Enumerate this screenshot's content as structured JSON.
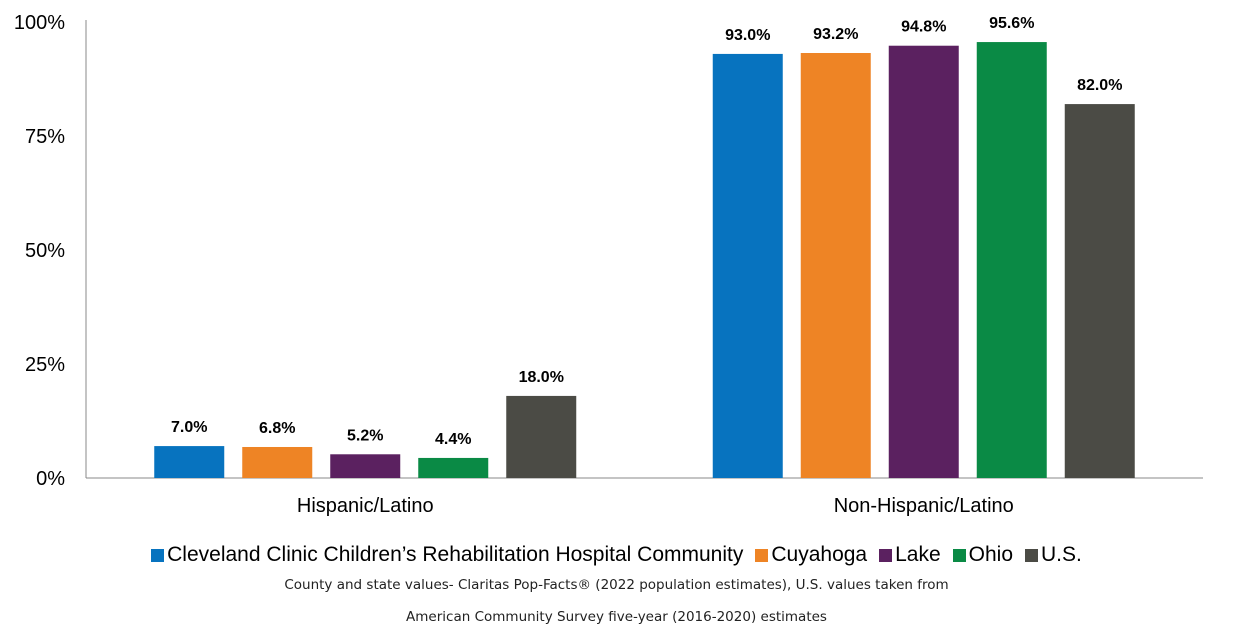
{
  "chart_data": {
    "type": "bar",
    "categories": [
      "Hispanic/Latino",
      "Non-Hispanic/Latino"
    ],
    "series": [
      {
        "name": "Cleveland Clinic Children’s Rehabilitation Hospital Community",
        "color": "#0773BF",
        "values": [
          7.0,
          93.0
        ],
        "labels": [
          "7.0%",
          "93.0%"
        ]
      },
      {
        "name": "Cuyahoga",
        "color": "#EE8425",
        "values": [
          6.8,
          93.2
        ],
        "labels": [
          "6.8%",
          "93.2%"
        ]
      },
      {
        "name": "Lake",
        "color": "#5B2160",
        "values": [
          5.2,
          94.8
        ],
        "labels": [
          "5.2%",
          "94.8%"
        ]
      },
      {
        "name": "Ohio",
        "color": "#0A8A45",
        "values": [
          4.4,
          95.6
        ],
        "labels": [
          "4.4%",
          "95.6%"
        ]
      },
      {
        "name": "U.S.",
        "color": "#4B4B45",
        "values": [
          18.0,
          82.0
        ],
        "labels": [
          "18.0%",
          "82.0%"
        ]
      }
    ],
    "yticks": [
      "0%",
      "25%",
      "50%",
      "75%",
      "100%"
    ],
    "ylim": [
      0,
      100
    ],
    "grid": false,
    "legend": "bottom"
  },
  "footnote": {
    "line1": "County and state values- Claritas Pop-Facts® (2022 population estimates), U.S. values taken from",
    "line2": "American Community Survey five-year (2016-2020) estimates"
  }
}
